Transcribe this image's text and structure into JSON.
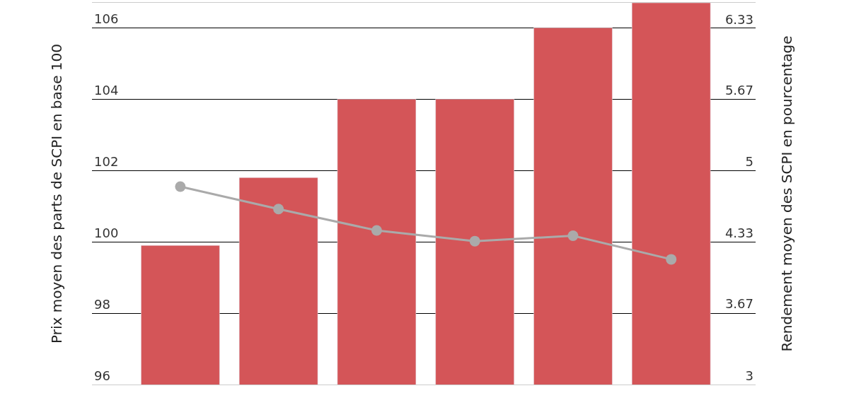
{
  "chart_data": {
    "type": "bar",
    "ylabel": "Prix moyen des parts de SCPI en base 100",
    "y2label": "Rendement moyen des SCPI en pourcentage",
    "categories": [
      null,
      null,
      null,
      null,
      null,
      null
    ],
    "series": [
      {
        "color": "#d45558",
        "values": [
          99.9,
          101.8,
          104,
          104,
          106,
          106.7
        ]
      },
      {
        "type": "line",
        "axis": "y2",
        "color": "#aaaaaa",
        "values": [
          4.85,
          4.64,
          4.44,
          4.34,
          4.39,
          4.17
        ]
      }
    ],
    "ylim": [
      96,
      106.7
    ],
    "yticks": [
      96,
      98,
      100,
      102,
      104,
      106
    ],
    "y2lim": [
      3,
      6.567
    ],
    "y2ticks": [
      3,
      3.67,
      4.33,
      5,
      5.67,
      6.33
    ],
    "grid": "y",
    "marker": "circle",
    "line_style": "solid",
    "legend": false
  }
}
